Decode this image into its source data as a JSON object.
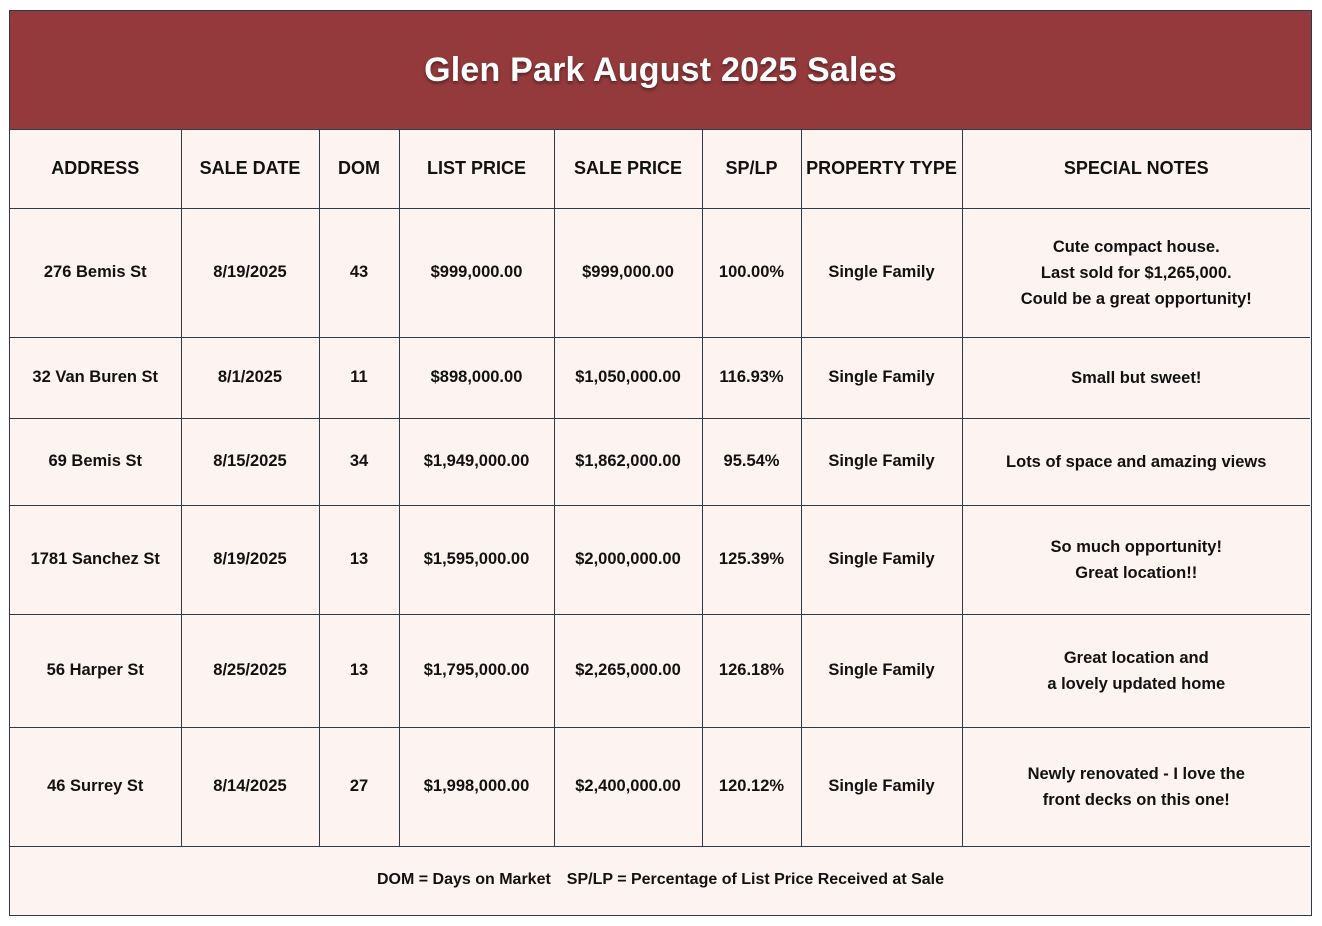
{
  "title": "Glen Park August 2025 Sales",
  "columns": [
    "ADDRESS",
    "SALE DATE",
    "DOM",
    "LIST PRICE",
    "SALE PRICE",
    "SP/LP",
    "PROPERTY TYPE",
    "SPECIAL NOTES"
  ],
  "rows": [
    {
      "address": "276 Bemis St",
      "sale_date": "8/19/2025",
      "dom": "43",
      "list_price": "$999,000.00",
      "sale_price": "$999,000.00",
      "sp_lp": "100.00%",
      "property_type": "Single Family",
      "notes": "Cute compact house.\nLast sold for $1,265,000.\nCould be a great opportunity!"
    },
    {
      "address": "32 Van Buren St",
      "sale_date": "8/1/2025",
      "dom": "11",
      "list_price": "$898,000.00",
      "sale_price": "$1,050,000.00",
      "sp_lp": "116.93%",
      "property_type": "Single Family",
      "notes": "Small but sweet!"
    },
    {
      "address": "69 Bemis St",
      "sale_date": "8/15/2025",
      "dom": "34",
      "list_price": "$1,949,000.00",
      "sale_price": "$1,862,000.00",
      "sp_lp": "95.54%",
      "property_type": "Single Family",
      "notes": "Lots of space and amazing views"
    },
    {
      "address": "1781 Sanchez St",
      "sale_date": "8/19/2025",
      "dom": "13",
      "list_price": "$1,595,000.00",
      "sale_price": "$2,000,000.00",
      "sp_lp": "125.39%",
      "property_type": "Single Family",
      "notes": "So much opportunity!\nGreat location!!"
    },
    {
      "address": "56 Harper St",
      "sale_date": "8/25/2025",
      "dom": "13",
      "list_price": "$1,795,000.00",
      "sale_price": "$2,265,000.00",
      "sp_lp": "126.18%",
      "property_type": "Single Family",
      "notes": "Great location and\na lovely updated home"
    },
    {
      "address": "46 Surrey St",
      "sale_date": "8/14/2025",
      "dom": "27",
      "list_price": "$1,998,000.00",
      "sale_price": "$2,400,000.00",
      "sp_lp": "120.12%",
      "property_type": "Single Family",
      "notes": "Newly renovated - I love the\nfront decks on this one!"
    }
  ],
  "footer": {
    "dom_legend": "DOM = Days on Market",
    "splp_legend": "SP/LP = Percentage of List Price Received at Sale"
  },
  "colors": {
    "header_band": "#943a3c",
    "sheet_background": "#fdf3f1",
    "grid_lines": "#2c3a4a"
  }
}
